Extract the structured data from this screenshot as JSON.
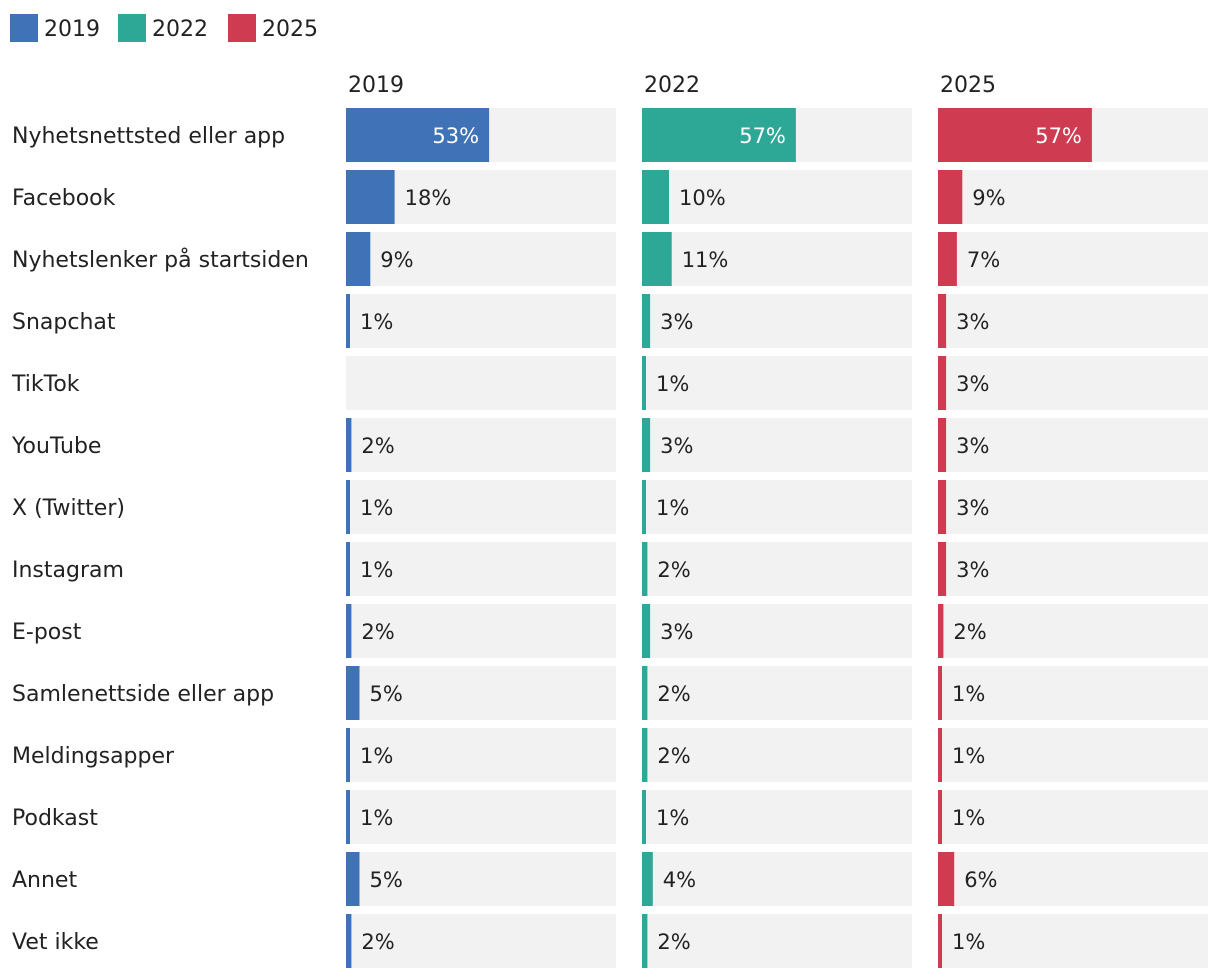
{
  "chart_data": {
    "type": "bar",
    "orientation": "horizontal",
    "layout": "small-multiples",
    "categories": [
      "Nyhetsnettsted eller app",
      "Facebook",
      "Nyhetslenker på startsiden",
      "Snapchat",
      "TikTok",
      "YouTube",
      "X (Twitter)",
      "Instagram",
      "E-post",
      "Samlenettside eller app",
      "Meldingsapper",
      "Podkast",
      "Annet",
      "Vet ikke"
    ],
    "series": [
      {
        "name": "2019",
        "color": "#3f72b6",
        "values": [
          53,
          18,
          9,
          1,
          null,
          2,
          1,
          1,
          2,
          5,
          1,
          1,
          5,
          2
        ]
      },
      {
        "name": "2022",
        "color": "#2ea896",
        "values": [
          57,
          10,
          11,
          3,
          1,
          3,
          1,
          2,
          3,
          2,
          2,
          1,
          4,
          2
        ]
      },
      {
        "name": "2025",
        "color": "#cf3b51",
        "values": [
          57,
          9,
          7,
          3,
          3,
          3,
          3,
          3,
          2,
          1,
          1,
          1,
          6,
          1
        ]
      }
    ],
    "value_suffix": "%",
    "xlim": [
      0,
      100
    ],
    "grid": false,
    "legend": {
      "position": "top-left",
      "items": [
        "2019",
        "2022",
        "2025"
      ]
    },
    "track_color": "#f2f2f2"
  }
}
